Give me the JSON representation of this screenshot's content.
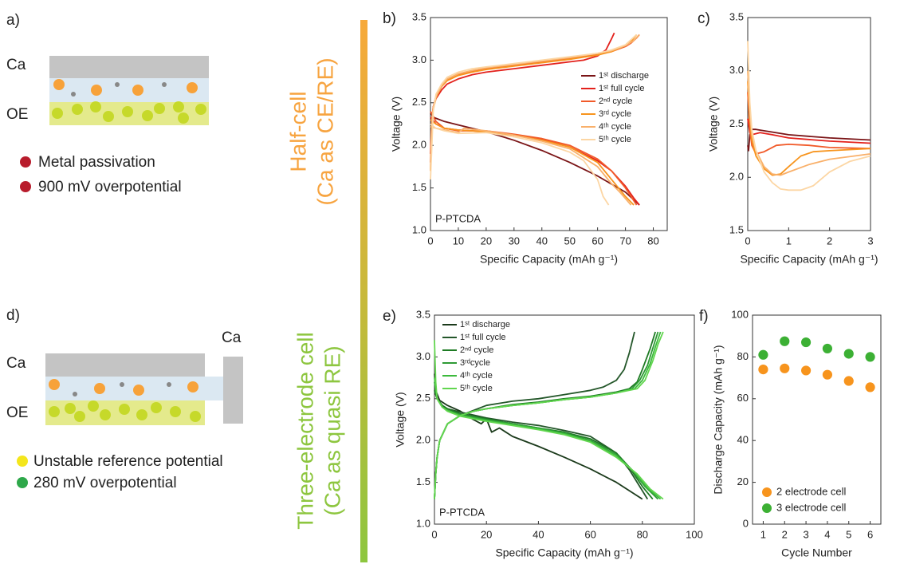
{
  "panel_a": {
    "label": "a)",
    "layers": [
      "Ca",
      "OE"
    ],
    "notes": [
      "Metal passivation",
      "900 mV overpotential"
    ]
  },
  "half_cell": {
    "title": "Half-cell",
    "subtitle": "(Ca as CE/RE)"
  },
  "panel_d": {
    "label": "d)",
    "electrode": "Ca",
    "layers": [
      "Ca",
      "OE"
    ],
    "notes": [
      "Unstable reference potential",
      "280 mV overpotential"
    ]
  },
  "three_electrode": {
    "title": "Three-electrode cell",
    "subtitle": "(Ca as quasi RE)"
  },
  "chart_data": [
    {
      "type": "line",
      "label": "b)",
      "annotation": "P-PTCDA",
      "xlabel": "Specific Capacity (mAh g⁻¹)",
      "ylabel": "Voltage (V)",
      "xlim": [
        0,
        85
      ],
      "xticks": [
        0,
        10,
        20,
        30,
        40,
        50,
        60,
        70,
        80
      ],
      "ylim": [
        1,
        3.5
      ],
      "yticks": [
        {
          "value": 1,
          "label": "1.0"
        },
        1.5,
        {
          "value": 2,
          "label": "2.0"
        },
        2.5,
        {
          "value": 3,
          "label": "3.0"
        },
        3.5
      ],
      "legend": "center right",
      "series": [
        {
          "name": "1ˢᵗ discharge",
          "color": "#7a1416",
          "x": [
            0,
            1,
            5,
            10,
            20,
            30,
            40,
            50,
            60,
            70,
            75
          ],
          "values": [
            2.38,
            2.33,
            2.28,
            2.24,
            2.16,
            2.06,
            1.94,
            1.8,
            1.64,
            1.45,
            1.3
          ]
        },
        {
          "name": "1ˢᵗ full cycle",
          "color": "#e3211c",
          "x": [
            0,
            0.5,
            1,
            2,
            4,
            6,
            10,
            15,
            20,
            30,
            40,
            50,
            55,
            60,
            63,
            65,
            66,
            null,
            0,
            2,
            5,
            10,
            20,
            30,
            40,
            50,
            60,
            65,
            70,
            73,
            75
          ],
          "values": [
            1.9,
            2.3,
            2.45,
            2.55,
            2.65,
            2.72,
            2.78,
            2.83,
            2.86,
            2.9,
            2.94,
            2.98,
            3.0,
            3.05,
            3.12,
            3.25,
            3.32,
            null,
            2.33,
            2.25,
            2.2,
            2.18,
            2.16,
            2.12,
            2.07,
            1.98,
            1.82,
            1.7,
            1.52,
            1.38,
            1.3
          ]
        },
        {
          "name": "2ⁿᵈ cycle",
          "color": "#f15a29",
          "x": [
            0,
            0.5,
            1,
            2,
            4,
            6,
            10,
            15,
            20,
            30,
            40,
            50,
            60,
            65,
            70,
            72,
            74,
            75,
            null,
            0,
            2,
            5,
            10,
            20,
            30,
            40,
            50,
            60,
            65,
            70,
            74
          ],
          "values": [
            1.8,
            2.3,
            2.45,
            2.58,
            2.7,
            2.77,
            2.83,
            2.87,
            2.9,
            2.94,
            2.98,
            3.02,
            3.07,
            3.1,
            3.16,
            3.2,
            3.26,
            3.3,
            null,
            2.4,
            2.28,
            2.2,
            2.17,
            2.17,
            2.13,
            2.08,
            2.0,
            1.84,
            1.7,
            1.5,
            1.3
          ]
        },
        {
          "name": "3ʳᵈ cycle",
          "color": "#f7941d",
          "x": [
            0,
            0.5,
            1,
            2,
            4,
            6,
            10,
            15,
            20,
            30,
            40,
            50,
            60,
            65,
            70,
            72,
            74,
            null,
            0,
            2,
            5,
            10,
            20,
            30,
            40,
            50,
            60,
            65,
            70,
            73
          ],
          "values": [
            1.7,
            2.25,
            2.42,
            2.56,
            2.69,
            2.76,
            2.82,
            2.86,
            2.89,
            2.93,
            2.97,
            3.01,
            3.06,
            3.1,
            3.17,
            3.22,
            3.3,
            null,
            2.3,
            2.25,
            2.2,
            2.18,
            2.16,
            2.12,
            2.06,
            1.98,
            1.8,
            1.6,
            1.4,
            1.3
          ]
        },
        {
          "name": "4ᵗʰ cycle",
          "color": "#f9b06a",
          "x": [
            0,
            0.5,
            1,
            2,
            4,
            6,
            10,
            15,
            20,
            30,
            40,
            50,
            60,
            65,
            70,
            73,
            75,
            null,
            0,
            2,
            5,
            10,
            12,
            20,
            30,
            40,
            50,
            60,
            65,
            68,
            72
          ],
          "values": [
            1.7,
            2.28,
            2.44,
            2.57,
            2.7,
            2.78,
            2.84,
            2.88,
            2.91,
            2.95,
            2.99,
            3.03,
            3.08,
            3.11,
            3.17,
            3.23,
            3.3,
            null,
            2.22,
            2.2,
            2.18,
            2.15,
            2.2,
            2.17,
            2.12,
            2.05,
            1.96,
            1.75,
            1.55,
            1.45,
            1.3
          ]
        },
        {
          "name": "5ᵗʰ cycle",
          "color": "#fcd6a4",
          "x": [
            0,
            1,
            2,
            4,
            6,
            10,
            15,
            20,
            30,
            40,
            50,
            60,
            65,
            70,
            74,
            null,
            0,
            2,
            5,
            10,
            20,
            30,
            40,
            50,
            55,
            60,
            62,
            64
          ],
          "values": [
            1.6,
            2.4,
            2.6,
            2.72,
            2.8,
            2.86,
            2.9,
            2.92,
            2.96,
            3.0,
            3.04,
            3.08,
            3.12,
            3.18,
            3.3,
            null,
            2.25,
            2.2,
            2.17,
            2.14,
            2.15,
            2.1,
            2.03,
            1.92,
            1.82,
            1.6,
            1.4,
            1.3
          ]
        }
      ]
    },
    {
      "type": "line",
      "label": "c)",
      "xlabel": "Specific Capacity (mAh g⁻¹)",
      "ylabel": "Voltage (V)",
      "xlim": [
        0,
        3
      ],
      "xticks": [
        0,
        1,
        2,
        3
      ],
      "ylim": [
        1.5,
        3.5
      ],
      "yticks": [
        1.5,
        {
          "value": 2,
          "label": "2.0"
        },
        2.5,
        {
          "value": 3,
          "label": "3.0"
        },
        3.5
      ],
      "series": [
        {
          "color": "#7a1416",
          "x": [
            0,
            0.02,
            0.05,
            0.1,
            0.2,
            0.5,
            1,
            2,
            3
          ],
          "values": [
            2.3,
            2.25,
            2.4,
            2.45,
            2.45,
            2.43,
            2.4,
            2.37,
            2.35
          ]
        },
        {
          "color": "#e3211c",
          "x": [
            0,
            0.05,
            0.1,
            0.3,
            0.6,
            1,
            2,
            3
          ],
          "values": [
            2.55,
            2.42,
            2.4,
            2.42,
            2.4,
            2.37,
            2.34,
            2.32
          ]
        },
        {
          "color": "#f15a29",
          "x": [
            0,
            0.05,
            0.1,
            0.2,
            0.4,
            0.7,
            1,
            1.5,
            2,
            3
          ],
          "values": [
            2.8,
            2.45,
            2.3,
            2.22,
            2.24,
            2.3,
            2.31,
            2.3,
            2.28,
            2.27
          ]
        },
        {
          "color": "#f7941d",
          "x": [
            0,
            0.05,
            0.1,
            0.2,
            0.4,
            0.6,
            0.8,
            1,
            1.3,
            1.6,
            2,
            3
          ],
          "values": [
            2.9,
            2.55,
            2.35,
            2.2,
            2.08,
            2.02,
            2.03,
            2.1,
            2.2,
            2.24,
            2.25,
            2.27
          ]
        },
        {
          "color": "#f9b06a",
          "x": [
            0,
            0.05,
            0.1,
            0.2,
            0.4,
            0.6,
            0.8,
            1,
            1.5,
            2,
            3
          ],
          "values": [
            3.0,
            2.6,
            2.4,
            2.25,
            2.1,
            2.03,
            2.02,
            2.05,
            2.12,
            2.17,
            2.22
          ]
        },
        {
          "color": "#fcd6a4",
          "x": [
            0,
            0.05,
            0.1,
            0.2,
            0.4,
            0.6,
            0.8,
            1,
            1.3,
            1.6,
            2,
            2.5,
            3
          ],
          "values": [
            3.28,
            2.7,
            2.45,
            2.25,
            2.05,
            1.95,
            1.89,
            1.88,
            1.88,
            1.92,
            2.05,
            2.15,
            2.2
          ]
        }
      ]
    },
    {
      "type": "line",
      "label": "e)",
      "annotation": "P-PTCDA",
      "xlabel": "Specific Capacity (mAh g⁻¹)",
      "ylabel": "Voltage (V)",
      "xlim": [
        0,
        100
      ],
      "xticks": [
        0,
        20,
        40,
        60,
        80,
        100
      ],
      "ylim": [
        1,
        3.5
      ],
      "yticks": [
        {
          "value": 1,
          "label": "1.0"
        },
        1.5,
        {
          "value": 2,
          "label": "2.0"
        },
        2.5,
        {
          "value": 3,
          "label": "3.0"
        },
        3.5
      ],
      "legend": "upper left",
      "series": [
        {
          "name": "1ˢᵗ discharge",
          "color": "#1b3a1b",
          "x": [
            0,
            0.5,
            2,
            5,
            10,
            15,
            18,
            20,
            22,
            25,
            30,
            40,
            50,
            60,
            70,
            75,
            80
          ],
          "values": [
            2.8,
            2.6,
            2.48,
            2.42,
            2.35,
            2.25,
            2.2,
            2.26,
            2.1,
            2.15,
            2.05,
            1.93,
            1.8,
            1.66,
            1.5,
            1.4,
            1.3
          ]
        },
        {
          "name": "1ˢᵗ full cycle",
          "color": "#24572a",
          "x": [
            0,
            0.5,
            1,
            2,
            5,
            10,
            15,
            20,
            30,
            40,
            50,
            60,
            65,
            70,
            73,
            75,
            77,
            null,
            0,
            1,
            3,
            5,
            10,
            20,
            30,
            40,
            50,
            60,
            70,
            75,
            80,
            82
          ],
          "values": [
            1.3,
            1.6,
            1.8,
            2.0,
            2.2,
            2.3,
            2.36,
            2.42,
            2.47,
            2.5,
            2.55,
            2.6,
            2.64,
            2.72,
            2.85,
            3.05,
            3.3,
            null,
            2.6,
            2.5,
            2.42,
            2.38,
            2.34,
            2.27,
            2.22,
            2.18,
            2.12,
            2.05,
            1.85,
            1.65,
            1.4,
            1.3
          ]
        },
        {
          "name": "2ⁿᵈ cycle",
          "color": "#1e7b24",
          "x": [
            0,
            0.5,
            1,
            2,
            5,
            10,
            15,
            20,
            30,
            40,
            50,
            60,
            70,
            75,
            78,
            80,
            83,
            85,
            null,
            0,
            1,
            3,
            5,
            10,
            20,
            30,
            40,
            50,
            60,
            70,
            75,
            80,
            84
          ],
          "values": [
            1.3,
            1.6,
            1.8,
            2.0,
            2.2,
            2.3,
            2.35,
            2.38,
            2.43,
            2.46,
            2.5,
            2.53,
            2.58,
            2.62,
            2.7,
            2.85,
            3.1,
            3.3,
            null,
            2.6,
            2.5,
            2.42,
            2.38,
            2.32,
            2.26,
            2.2,
            2.15,
            2.1,
            2.02,
            1.85,
            1.68,
            1.45,
            1.3
          ]
        },
        {
          "name": "3ʳᵈcycle",
          "color": "#2e9a35",
          "x": [
            0,
            0.5,
            1,
            2,
            5,
            10,
            15,
            20,
            30,
            40,
            50,
            60,
            70,
            76,
            79,
            82,
            84,
            86,
            null,
            0,
            1,
            3,
            5,
            10,
            20,
            30,
            40,
            50,
            60,
            70,
            76,
            81,
            86
          ],
          "values": [
            1.3,
            1.6,
            1.8,
            2.0,
            2.2,
            2.3,
            2.35,
            2.38,
            2.42,
            2.45,
            2.49,
            2.52,
            2.57,
            2.62,
            2.72,
            2.9,
            3.1,
            3.3,
            null,
            2.7,
            2.5,
            2.4,
            2.36,
            2.31,
            2.25,
            2.2,
            2.15,
            2.09,
            2.0,
            1.83,
            1.65,
            1.45,
            1.3
          ]
        },
        {
          "name": "4ᵗʰ cycle",
          "color": "#3cba3c",
          "x": [
            0,
            0.5,
            1,
            2,
            5,
            10,
            15,
            20,
            30,
            40,
            50,
            60,
            70,
            77,
            80,
            83,
            85,
            87,
            null,
            0,
            1,
            3,
            5,
            10,
            20,
            30,
            40,
            50,
            60,
            70,
            77,
            82,
            87
          ],
          "values": [
            1.3,
            1.6,
            1.8,
            2.0,
            2.2,
            2.3,
            2.35,
            2.38,
            2.42,
            2.45,
            2.49,
            2.52,
            2.57,
            2.62,
            2.72,
            2.92,
            3.12,
            3.3,
            null,
            2.75,
            2.5,
            2.4,
            2.36,
            2.3,
            2.24,
            2.19,
            2.14,
            2.08,
            1.99,
            1.82,
            1.62,
            1.43,
            1.3
          ]
        },
        {
          "name": "5ᵗʰ cycle",
          "color": "#62d64f",
          "x": [
            0,
            0.5,
            1,
            2,
            5,
            10,
            15,
            20,
            30,
            40,
            50,
            60,
            70,
            78,
            81,
            84,
            86,
            88,
            null,
            0,
            0.5,
            1,
            3,
            5,
            10,
            20,
            30,
            40,
            50,
            60,
            70,
            78,
            83,
            88
          ],
          "values": [
            1.3,
            1.6,
            1.8,
            2.0,
            2.2,
            2.3,
            2.35,
            2.38,
            2.42,
            2.45,
            2.49,
            2.52,
            2.57,
            2.62,
            2.72,
            2.95,
            3.15,
            3.3,
            null,
            3.2,
            2.7,
            2.5,
            2.4,
            2.35,
            2.29,
            2.23,
            2.18,
            2.13,
            2.07,
            1.98,
            1.8,
            1.6,
            1.42,
            1.3
          ]
        }
      ]
    },
    {
      "type": "scatter",
      "label": "f)",
      "xlabel": "Cycle Number",
      "ylabel": "Discharge Capacity (mAh g⁻¹)",
      "xlim": [
        0.5,
        6.5
      ],
      "xticks": [
        1,
        2,
        3,
        4,
        5,
        6
      ],
      "ylim": [
        0,
        100
      ],
      "yticks": [
        0,
        20,
        40,
        60,
        80,
        100
      ],
      "legend": "lower left",
      "x": [
        1,
        2,
        3,
        4,
        5,
        6
      ],
      "series": [
        {
          "name": "2 electrode cell",
          "color": "#f7941d",
          "values": [
            74,
            74.5,
            73.5,
            71.5,
            68.5,
            65.5
          ]
        },
        {
          "name": "3 electrode cell",
          "color": "#3cb034",
          "values": [
            81,
            87.5,
            87,
            84,
            81.5,
            80
          ]
        }
      ]
    }
  ]
}
